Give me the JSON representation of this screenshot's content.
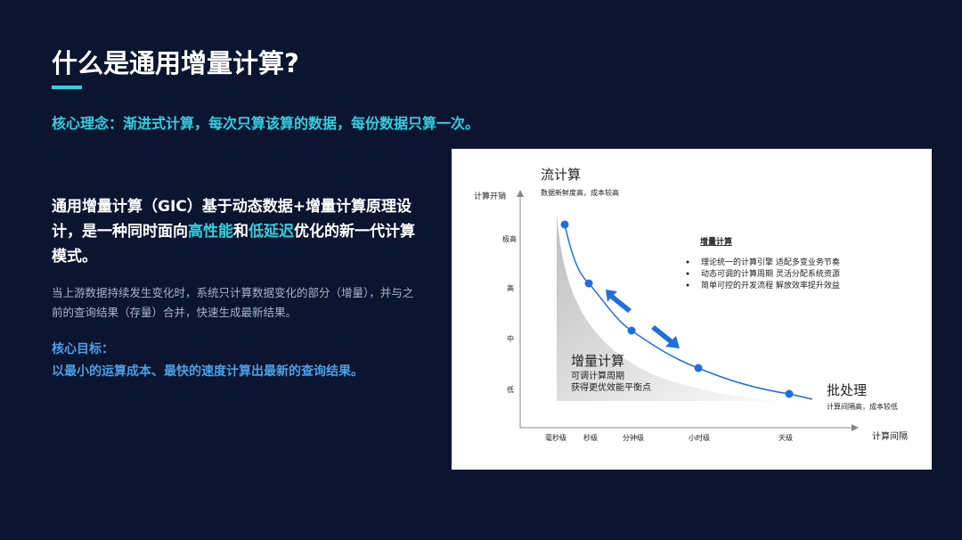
{
  "header": {
    "title": "什么是通用增量计算?"
  },
  "concept": "核心理念：渐进式计算，每次只算该算的数据，每份数据只算一次。",
  "intro": {
    "parts": [
      "通用增量计算（GIC）基于动态数据+增量计算原理设计，是一种同时面向",
      "高性能",
      "和",
      "低延迟",
      "优化的新一代计算模式。"
    ]
  },
  "detail": "当上游数据持续发生变化时，系统只计算数据变化的部分（增量），并与之前的查询结果（存量）合并，快速生成最新结果。",
  "goal": {
    "label": "核心目标：",
    "text": "以最小的运算成本、最快的速度计算出最新的查询结果。"
  },
  "diagram": {
    "y_axis_label": "计算开销",
    "y_levels": [
      "极高",
      "高",
      "中",
      "低"
    ],
    "x_axis_label": "计算间隔",
    "x_levels": [
      "毫秒级",
      "秒级",
      "分钟级",
      "小时级",
      "天级"
    ],
    "stream": {
      "title": "流计算",
      "note": "数据新鲜度高，成本较高"
    },
    "batch": {
      "title": "批处理",
      "note": "计算间隔高，成本较低"
    },
    "incremental": {
      "title": "增量计算",
      "lines": [
        "可调计算周期",
        "获得更优效能平衡点"
      ]
    },
    "legend": {
      "title": "增量计算",
      "items": [
        "理论统一的计算引擎 适配多变业务节奏",
        "动态可调的计算周期 灵活分配系统资源",
        "简单可控的开发流程 解放效率提升效益"
      ]
    }
  }
}
